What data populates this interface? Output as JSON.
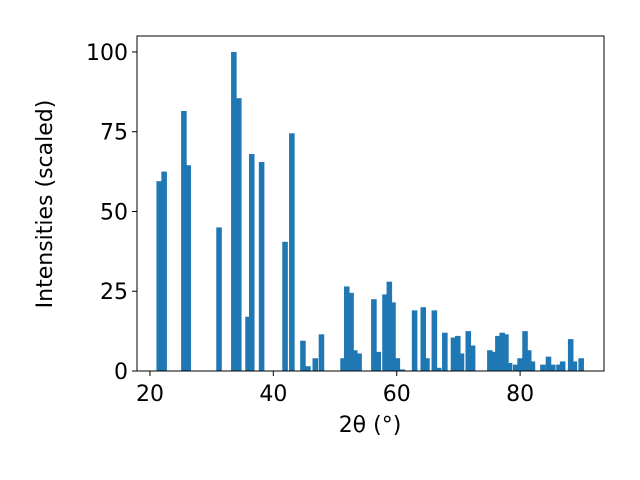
{
  "chart_data": {
    "type": "bar",
    "xlabel": "2θ (°)",
    "ylabel": "Intensities (scaled)",
    "x": [
      21.5,
      22.3,
      25.5,
      26.2,
      31.2,
      33.6,
      34.4,
      35.9,
      36.5,
      38.1,
      41.9,
      43.0,
      44.8,
      45.6,
      46.8,
      47.8,
      51.3,
      51.9,
      52.6,
      53.2,
      53.9,
      56.3,
      57.0,
      58.1,
      58.8,
      59.4,
      60.1,
      60.9,
      62.9,
      64.3,
      64.9,
      66.1,
      66.8,
      67.8,
      69.2,
      69.9,
      70.5,
      71.6,
      72.3,
      75.1,
      75.8,
      76.4,
      77.1,
      77.7,
      78.3,
      79.3,
      80.0,
      80.8,
      81.4,
      82.0,
      83.7,
      84.6,
      85.3,
      86.3,
      86.9,
      88.2,
      88.8,
      89.9
    ],
    "values": [
      59.5,
      62.5,
      81.5,
      64.5,
      45,
      100,
      85.5,
      17,
      68,
      65.5,
      40.5,
      74.5,
      9.5,
      1.5,
      4,
      11.5,
      4,
      26.5,
      24.5,
      6.5,
      5.5,
      22.5,
      6,
      24,
      28,
      21.5,
      4,
      0.5,
      19,
      20,
      4,
      19,
      1,
      12,
      10.5,
      11,
      5.5,
      12.5,
      8,
      6.5,
      6,
      11,
      12,
      11.5,
      2.5,
      2,
      4,
      12.5,
      6.5,
      3,
      2,
      4.5,
      2,
      2,
      3,
      10,
      3,
      4
    ],
    "color": "#1f77b4",
    "xlim": [
      17.9,
      93.6
    ],
    "xticks": [
      20,
      40,
      60,
      80
    ],
    "ylim": [
      0,
      105
    ],
    "yticks": [
      0,
      25,
      50,
      75,
      100
    ]
  }
}
